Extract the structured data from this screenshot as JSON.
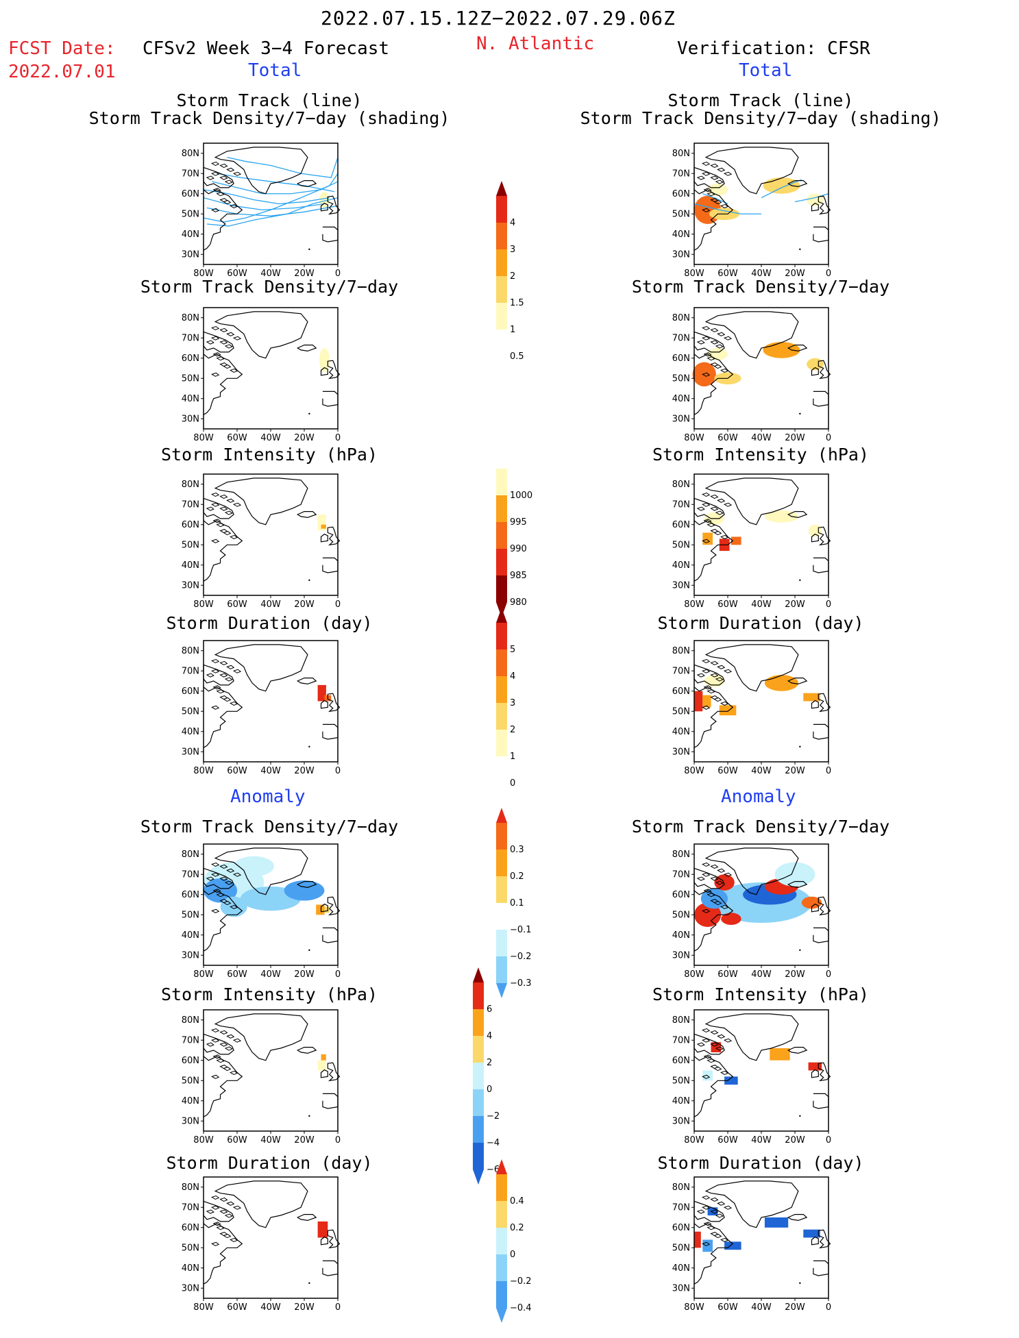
{
  "header": {
    "period": "2022.07.15.12Z−2022.07.29.06Z",
    "fcst_date_label": "FCST Date:",
    "fcst_date": "2022.07.01",
    "model_title": "CFSv2 Week 3−4 Forecast",
    "region": "N. Atlantic",
    "verification": "Verification: CFSR",
    "total_left": "Total",
    "total_right": "Total",
    "anomaly_left": "Anomaly",
    "anomaly_right": "Anomaly"
  },
  "panels": {
    "track_title_1": "Storm Track (line)",
    "track_title_2": "Storm Track Density/7−day (shading)",
    "density": "Storm Track Density/7−day",
    "intensity": "Storm Intensity (hPa)",
    "duration": "Storm Duration (day)"
  },
  "axes": {
    "lat_ticks": [
      "80N",
      "70N",
      "60N",
      "50N",
      "40N",
      "30N"
    ],
    "lon_ticks": [
      "80W",
      "60W",
      "40W",
      "20W",
      "0"
    ]
  },
  "colorbars": {
    "density_total": [
      "4",
      "3",
      "2",
      "1.5",
      "1",
      "0.5"
    ],
    "intensity_total": [
      "1000",
      "995",
      "990",
      "985",
      "980"
    ],
    "duration_total": [
      "5",
      "4",
      "3",
      "2",
      "1",
      "0"
    ],
    "density_anom": [
      "0.3",
      "0.2",
      "0.1",
      "−0.1",
      "−0.2",
      "−0.3"
    ],
    "intensity_anom": [
      "6",
      "4",
      "2",
      "0",
      "−2",
      "−4",
      "−6"
    ],
    "duration_anom": [
      "0.4",
      "0.2",
      "0",
      "−0.2",
      "−0.4"
    ]
  },
  "colors": {
    "title_red": "#e8242a",
    "title_blue": "#1f3ef0",
    "track_line": "#2aa4f0",
    "warm_1": "#fff9bd",
    "warm_2": "#fbd86a",
    "warm_3": "#fba21b",
    "warm_4": "#f46a19",
    "warm_5": "#e52a17",
    "warm_6": "#b81010",
    "warm_7": "#8b0000",
    "cool_1": "#c9f2fb",
    "cool_2": "#8cd3f8",
    "cool_3": "#4aa0f0",
    "cool_4": "#1f65d6"
  }
}
